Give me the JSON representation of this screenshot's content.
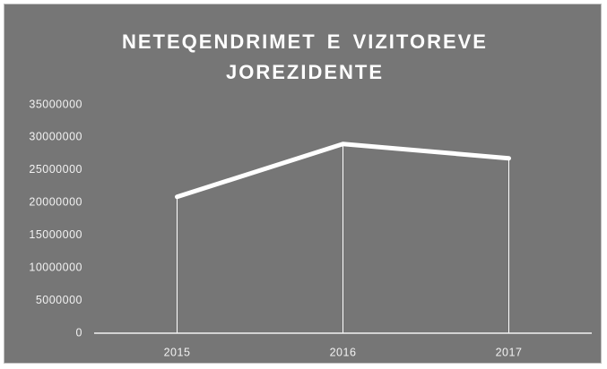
{
  "chart_data": {
    "type": "line",
    "title": "NETEQENDRIMET E VIZITOREVE JOREZIDENTE",
    "categories": [
      "2015",
      "2016",
      "2017"
    ],
    "series": [
      {
        "name": "Neteqendrimet",
        "color": "#ffffff",
        "values": [
          20900000,
          29000000,
          26800000
        ]
      }
    ],
    "ylim": [
      0,
      35000000
    ],
    "yticks": [
      0,
      5000000,
      10000000,
      15000000,
      20000000,
      25000000,
      30000000,
      35000000
    ],
    "drop_lines": true
  }
}
